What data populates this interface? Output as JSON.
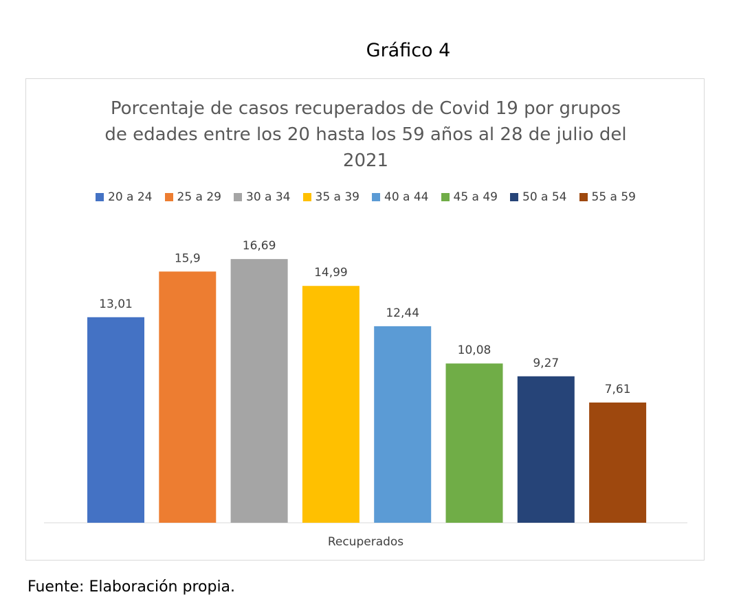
{
  "caption": "Gráfico 4",
  "source": "Fuente: Elaboración propia.",
  "chart_data": {
    "type": "bar",
    "title": "Porcentaje de casos recuperados de Covid 19 por grupos de edades entre los 20 hasta los 59 años al 28 de julio del 2021",
    "xlabel": "Recuperados",
    "ylabel": "",
    "categories": [
      "Recuperados"
    ],
    "ylim": [
      0,
      20
    ],
    "grid": false,
    "legend_position": "top",
    "series": [
      {
        "name": "20 a 24",
        "values": [
          13.01
        ],
        "label": "13,01",
        "color": "#4472c4"
      },
      {
        "name": "25 a 29",
        "values": [
          15.9
        ],
        "label": "15,9",
        "color": "#ed7d31"
      },
      {
        "name": "30 a 34",
        "values": [
          16.69
        ],
        "label": "16,69",
        "color": "#a5a5a5"
      },
      {
        "name": "35 a 39",
        "values": [
          14.99
        ],
        "label": "14,99",
        "color": "#ffc000"
      },
      {
        "name": "40 a 44",
        "values": [
          12.44
        ],
        "label": "12,44",
        "color": "#5b9bd5"
      },
      {
        "name": "45 a 49",
        "values": [
          10.08
        ],
        "label": "10,08",
        "color": "#70ad47"
      },
      {
        "name": "50 a 54",
        "values": [
          9.27
        ],
        "label": "9,27",
        "color": "#264478"
      },
      {
        "name": "55 a 59",
        "values": [
          7.61
        ],
        "label": "7,61",
        "color": "#9e480e"
      }
    ]
  }
}
